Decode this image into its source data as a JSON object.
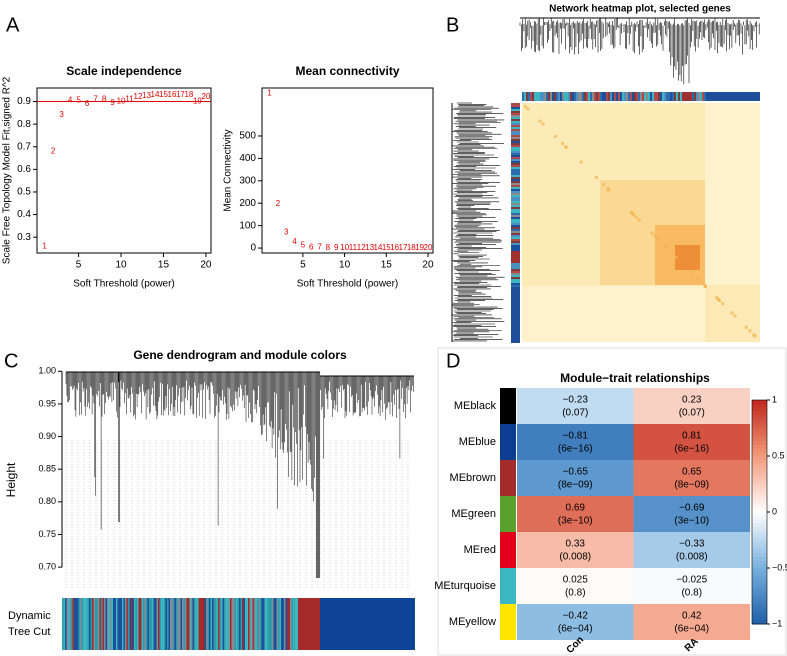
{
  "panels": [
    "A",
    "B",
    "C",
    "D"
  ],
  "chart_data": [
    {
      "type": "scatter",
      "title": "Scale independence",
      "x_label": "Soft Threshold (power)",
      "y_label": "Scale Free Topology Model Fit,signed R^2",
      "x": [
        1,
        2,
        3,
        4,
        5,
        6,
        7,
        8,
        9,
        10,
        11,
        12,
        13,
        14,
        15,
        16,
        17,
        18,
        19,
        20
      ],
      "values": [
        0.26,
        0.68,
        0.84,
        0.905,
        0.905,
        0.89,
        0.91,
        0.91,
        0.895,
        0.9,
        0.91,
        0.92,
        0.925,
        0.93,
        0.93,
        0.93,
        0.93,
        0.93,
        0.9,
        0.92
      ],
      "color": "#e00000",
      "xlim": [
        0.1,
        20.6
      ],
      "ylim": [
        0.23,
        0.96
      ],
      "xticks": [
        5,
        10,
        15,
        20
      ],
      "yticks": [
        0.3,
        0.4,
        0.5,
        0.6,
        0.7,
        0.8,
        0.9
      ],
      "hline": 0.9
    },
    {
      "type": "scatter",
      "title": "Mean connectivity",
      "x_label": "Soft Threshold (power)",
      "y_label": "Mean Connectivity",
      "x": [
        1,
        2,
        3,
        4,
        5,
        6,
        7,
        8,
        9,
        10,
        11,
        12,
        13,
        14,
        15,
        16,
        17,
        18,
        19,
        20
      ],
      "values": [
        690,
        196,
        71,
        27,
        13,
        4,
        2,
        1.5,
        1,
        0.8,
        0.6,
        0.5,
        0.4,
        0.3,
        0.3,
        0.2,
        0.2,
        0.2,
        0.1,
        0.1
      ],
      "color": "#e00000",
      "xlim": [
        0.1,
        20.6
      ],
      "ylim": [
        -22,
        714
      ],
      "xticks": [
        5,
        10,
        15,
        20
      ],
      "yticks": [
        0,
        100,
        200,
        300,
        400,
        500
      ]
    },
    {
      "type": "network-heatmap",
      "title": "Network heatmap plot, selected genes"
    },
    {
      "type": "dendrogram",
      "title": "Gene dendrogram and module colors",
      "y_label": "Height",
      "ylim": [
        0.665,
        1.005
      ],
      "yticks": [
        {
          "value": 0.7,
          "label": "0.70"
        },
        {
          "value": 0.75,
          "label": "0.75"
        },
        {
          "value": 0.8,
          "label": "0.80"
        },
        {
          "value": 0.85,
          "label": "0.85"
        },
        {
          "value": 0.9,
          "label": "0.90"
        },
        {
          "value": 0.95,
          "label": "0.95"
        },
        {
          "value": 1,
          "label": "1.00"
        }
      ],
      "color_bar_label": [
        "Dynamic",
        "Tree Cut"
      ]
    },
    {
      "type": "heatmap",
      "title": "Module−trait relationships",
      "rows": [
        "MEblack",
        "MEblue",
        "MEbrown",
        "MEgreen",
        "MEred",
        "MEturquoise",
        "MEyellow"
      ],
      "row_colors": [
        "#000000",
        "#0b3d91",
        "#a52a2a",
        "#5aa02c",
        "#e3001b",
        "#3ab7c0",
        "#ffe600"
      ],
      "columns": [
        "Con",
        "RA"
      ],
      "values": [
        [
          -0.23,
          0.23
        ],
        [
          -0.81,
          0.81
        ],
        [
          -0.65,
          0.65
        ],
        [
          0.69,
          -0.69
        ],
        [
          0.33,
          -0.33
        ],
        [
          0.025,
          -0.025
        ],
        [
          -0.42,
          0.42
        ]
      ],
      "value_labels": [
        [
          "−0.23",
          "0.23"
        ],
        [
          "−0.81",
          "0.81"
        ],
        [
          "−0.65",
          "0.65"
        ],
        [
          "0.69",
          "−0.69"
        ],
        [
          "0.33",
          "−0.33"
        ],
        [
          "0.025",
          "−0.025"
        ],
        [
          "−0.42",
          "0.42"
        ]
      ],
      "p_labels": [
        [
          "(0.07)",
          "(0.07)"
        ],
        [
          "(6e−16)",
          "(6e−16)"
        ],
        [
          "(8e−09)",
          "(8e−09)"
        ],
        [
          "(3e−10)",
          "(3e−10)"
        ],
        [
          "(0.008)",
          "(0.008)"
        ],
        [
          "(0.8)",
          "(0.8)"
        ],
        [
          "(6e−04)",
          "(6e−04)"
        ]
      ],
      "colors": [
        "#1f5fa8",
        "#78b0de",
        "#ffffff",
        "#f29a7b",
        "#c0261f"
      ],
      "zlim": [
        -1,
        1
      ],
      "colorbar_ticks": [
        1,
        0.5,
        0,
        {
          "value": -0.5,
          "label": "−0.5"
        },
        {
          "value": -1,
          "label": "−1"
        }
      ]
    }
  ]
}
